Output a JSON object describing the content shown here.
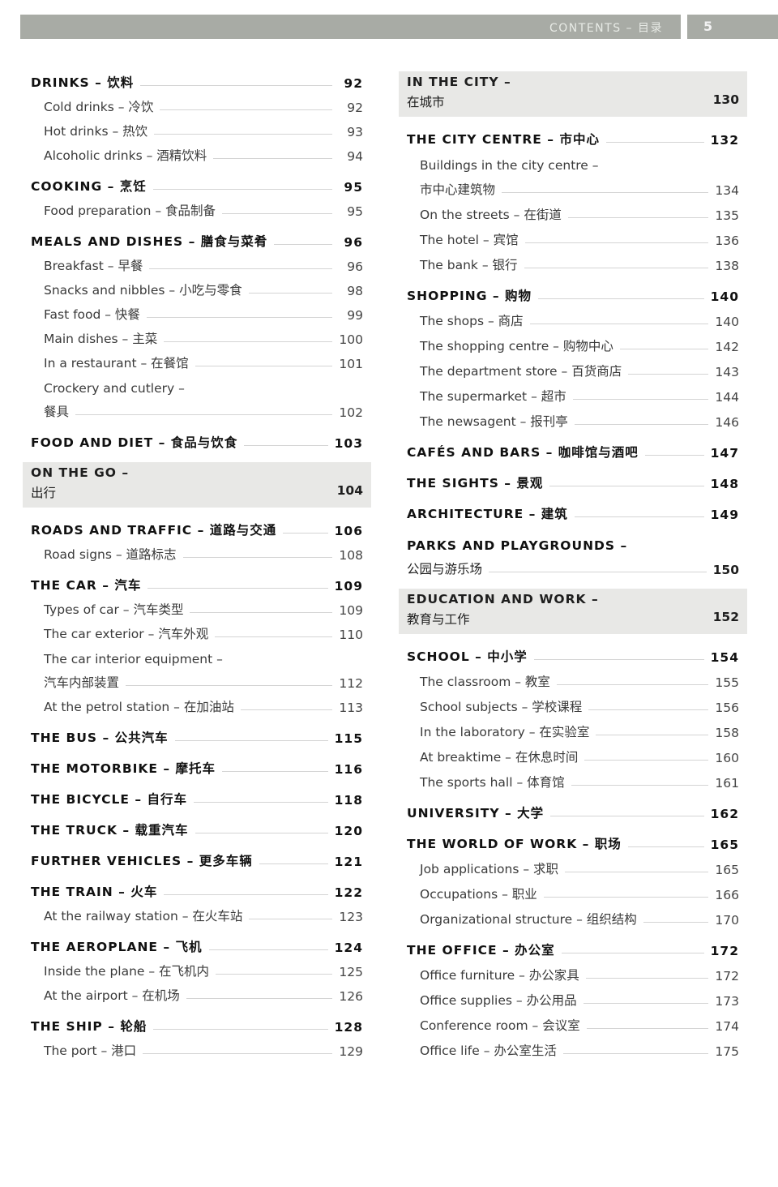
{
  "header": {
    "title": "CONTENTS – 目录",
    "page_number": "5"
  },
  "left": [
    {
      "type": "major",
      "label": "DRINKS – 饮料",
      "page": "92"
    },
    {
      "type": "sub",
      "label": "Cold drinks – 冷饮",
      "page": "92"
    },
    {
      "type": "sub",
      "label": "Hot drinks – 热饮",
      "page": "93"
    },
    {
      "type": "sub",
      "label": "Alcoholic drinks – 酒精饮料",
      "page": "94"
    },
    {
      "type": "major",
      "label": "COOKING – 烹饪",
      "page": "95"
    },
    {
      "type": "sub",
      "label": "Food preparation – 食品制备",
      "page": "95"
    },
    {
      "type": "major",
      "label": "MEALS AND DISHES – 膳食与菜肴",
      "page": "96"
    },
    {
      "type": "sub",
      "label": "Breakfast – 早餐",
      "page": "96"
    },
    {
      "type": "sub",
      "label": "Snacks and nibbles – 小吃与零食",
      "page": "98"
    },
    {
      "type": "sub",
      "label": "Fast food – 快餐",
      "page": "99"
    },
    {
      "type": "sub",
      "label": "Main dishes – 主菜",
      "page": "100"
    },
    {
      "type": "sub",
      "label": "In a restaurant – 在餐馆",
      "page": "101"
    },
    {
      "type": "sub",
      "label": "Crockery and cutlery –",
      "label2": "餐具",
      "page": "102"
    },
    {
      "type": "major",
      "label": "FOOD AND DIET – 食品与饮食",
      "page": "103"
    },
    {
      "type": "band",
      "label": "ON THE GO –",
      "label2": "出行",
      "page": "104"
    },
    {
      "type": "major",
      "label": "ROADS AND TRAFFIC – 道路与交通",
      "page": "106"
    },
    {
      "type": "sub",
      "label": "Road signs – 道路标志",
      "page": "108"
    },
    {
      "type": "major",
      "label": "THE CAR – 汽车",
      "page": "109"
    },
    {
      "type": "sub",
      "label": "Types of car – 汽车类型",
      "page": "109"
    },
    {
      "type": "sub",
      "label": "The car exterior – 汽车外观",
      "page": "110"
    },
    {
      "type": "sub",
      "label": "The car interior equipment –",
      "label2": "汽车内部装置",
      "page": "112"
    },
    {
      "type": "sub",
      "label": "At the petrol station – 在加油站",
      "page": "113"
    },
    {
      "type": "major",
      "label": "THE BUS – 公共汽车",
      "page": "115"
    },
    {
      "type": "major",
      "label": "THE MOTORBIKE – 摩托车",
      "page": "116"
    },
    {
      "type": "major",
      "label": "THE BICYCLE – 自行车",
      "page": "118"
    },
    {
      "type": "major",
      "label": "THE TRUCK – 载重汽车",
      "page": "120"
    },
    {
      "type": "major",
      "label": "FURTHER VEHICLES – 更多车辆",
      "page": "121"
    },
    {
      "type": "major",
      "label": "THE TRAIN – 火车",
      "page": "122"
    },
    {
      "type": "sub",
      "label": "At the railway station – 在火车站",
      "page": "123"
    },
    {
      "type": "major",
      "label": "THE AEROPLANE – 飞机",
      "page": "124"
    },
    {
      "type": "sub",
      "label": "Inside the plane – 在飞机内",
      "page": "125"
    },
    {
      "type": "sub",
      "label": "At the airport – 在机场",
      "page": "126"
    },
    {
      "type": "major",
      "label": "THE SHIP – 轮船",
      "page": "128"
    },
    {
      "type": "sub",
      "label": "The port – 港口",
      "page": "129"
    }
  ],
  "right": [
    {
      "type": "band",
      "label": "IN THE CITY –",
      "label2": "在城市",
      "page": "130"
    },
    {
      "type": "major",
      "label": "THE CITY CENTRE – 市中心",
      "page": "132"
    },
    {
      "type": "sub",
      "label": "Buildings in the city centre –",
      "label2": "市中心建筑物",
      "page": "134"
    },
    {
      "type": "sub",
      "label": "On the streets – 在街道",
      "page": "135"
    },
    {
      "type": "sub",
      "label": "The hotel – 宾馆",
      "page": "136"
    },
    {
      "type": "sub",
      "label": "The bank – 银行",
      "page": "138"
    },
    {
      "type": "major",
      "label": "SHOPPING – 购物",
      "page": "140"
    },
    {
      "type": "sub",
      "label": "The shops – 商店",
      "page": "140"
    },
    {
      "type": "sub",
      "label": "The shopping centre – 购物中心",
      "page": "142"
    },
    {
      "type": "sub",
      "label": "The department store – 百货商店",
      "page": "143"
    },
    {
      "type": "sub",
      "label": "The supermarket – 超市",
      "page": "144"
    },
    {
      "type": "sub",
      "label": "The newsagent – 报刊亭",
      "page": "146"
    },
    {
      "type": "major",
      "label": "CAFÉS AND BARS – 咖啡馆与酒吧",
      "page": "147"
    },
    {
      "type": "major",
      "label": "THE SIGHTS – 景观",
      "page": "148"
    },
    {
      "type": "major",
      "label": "ARCHITECTURE – 建筑",
      "page": "149"
    },
    {
      "type": "major",
      "label": "PARKS AND PLAYGROUNDS –",
      "label2": "公园与游乐场",
      "page": "150"
    },
    {
      "type": "band",
      "label": "EDUCATION AND WORK –",
      "label2": "教育与工作",
      "page": "152"
    },
    {
      "type": "major",
      "label": "SCHOOL – 中小学",
      "page": "154"
    },
    {
      "type": "sub",
      "label": "The classroom – 教室",
      "page": "155"
    },
    {
      "type": "sub",
      "label": "School subjects – 学校课程",
      "page": "156"
    },
    {
      "type": "sub",
      "label": "In the laboratory – 在实验室",
      "page": "158"
    },
    {
      "type": "sub",
      "label": "At breaktime – 在休息时间",
      "page": "160"
    },
    {
      "type": "sub",
      "label": "The sports hall – 体育馆",
      "page": "161"
    },
    {
      "type": "major",
      "label": "UNIVERSITY – 大学",
      "page": "162"
    },
    {
      "type": "major",
      "label": "THE WORLD OF WORK – 职场",
      "page": "165"
    },
    {
      "type": "sub",
      "label": "Job applications – 求职",
      "page": "165"
    },
    {
      "type": "sub",
      "label": "Occupations – 职业",
      "page": "166"
    },
    {
      "type": "sub",
      "label": "Organizational structure – 组织结构",
      "page": "170"
    },
    {
      "type": "major",
      "label": "THE OFFICE – 办公室",
      "page": "172"
    },
    {
      "type": "sub",
      "label": "Office furniture – 办公家具",
      "page": "172"
    },
    {
      "type": "sub",
      "label": "Office supplies – 办公用品",
      "page": "173"
    },
    {
      "type": "sub",
      "label": "Conference room – 会议室",
      "page": "174"
    },
    {
      "type": "sub",
      "label": "Office life – 办公室生活",
      "page": "175"
    }
  ]
}
